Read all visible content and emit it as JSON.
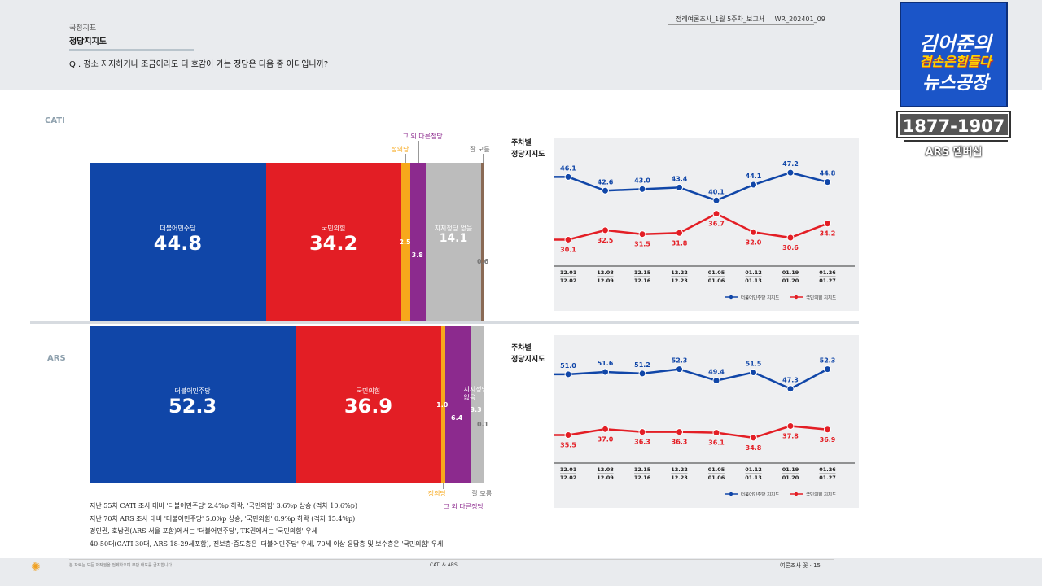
{
  "header": {
    "section": "국정지표",
    "title": "정당지지도",
    "question": "Q . 평소 지지하거나 조금이라도 더 호감이 가는 정당은 다음 중 어디입니까?",
    "doc_id": "정례여론조사_1월 5주차_보고서",
    "doc_code": "WR_202401_09"
  },
  "badge": {
    "line1": "김어준의",
    "line2": "겸손은힘들다",
    "line3": "뉴스공장",
    "number": "1877-1907",
    "sub": "ARS 멤버십"
  },
  "footer": {
    "small": "본 자료는 모든 저작권을 전제하오며 무단 배포를 금지합니다",
    "center": "CATI & ARS",
    "right": "여론조사 꽃 · 15"
  },
  "colors": {
    "democratic": "#1046a8",
    "ppp": "#e31e25",
    "justice": "#f7a81b",
    "other": "#8c2a8e",
    "none": "#bcbcbc",
    "dontknow": "#8a6a55"
  },
  "chart_data": [
    {
      "type": "bar",
      "stacked": "horizontal-100",
      "section": "CATI",
      "segments": [
        {
          "name": "더불어민주당",
          "value": 44.8,
          "color": "#1046a8"
        },
        {
          "name": "국민의힘",
          "value": 34.2,
          "color": "#e31e25"
        },
        {
          "name": "정의당",
          "value": 2.5,
          "color": "#f7a81b"
        },
        {
          "name": "그 외 다른정당",
          "value": 3.8,
          "color": "#8c2a8e"
        },
        {
          "name": "지지정당 없음",
          "value": 14.1,
          "color": "#bcbcbc"
        },
        {
          "name": "잘 모름",
          "value": 0.6,
          "color": "#8a6a55"
        }
      ]
    },
    {
      "type": "bar",
      "stacked": "horizontal-100",
      "section": "ARS",
      "segments": [
        {
          "name": "더불어민주당",
          "value": 52.3,
          "color": "#1046a8"
        },
        {
          "name": "국민의힘",
          "value": 36.9,
          "color": "#e31e25"
        },
        {
          "name": "정의당",
          "value": 1.0,
          "color": "#f7a81b"
        },
        {
          "name": "그 외 다른정당",
          "value": 6.4,
          "color": "#8c2a8e"
        },
        {
          "name": "지지정당 없음",
          "value": 3.3,
          "color": "#bcbcbc"
        },
        {
          "name": "잘 모름",
          "value": 0.1,
          "color": "#8a6a55"
        }
      ]
    },
    {
      "type": "line",
      "title": "주차별\n정당지지도",
      "x": [
        [
          "12.01",
          "12.02"
        ],
        [
          "12.08",
          "12.09"
        ],
        [
          "12.15",
          "12.16"
        ],
        [
          "12.22",
          "12.23"
        ],
        [
          "01.05",
          "01.06"
        ],
        [
          "01.12",
          "01.13"
        ],
        [
          "01.19",
          "01.20"
        ],
        [
          "01.26",
          "01.27"
        ]
      ],
      "ylim": [
        25,
        52
      ],
      "series": [
        {
          "name": "더불어민주당 지지도",
          "color": "#1046a8",
          "values": [
            46.1,
            42.6,
            43.0,
            43.4,
            40.1,
            44.1,
            47.2,
            44.8
          ]
        },
        {
          "name": "국민의힘 지지도",
          "color": "#e31e25",
          "values": [
            30.1,
            32.5,
            31.5,
            31.8,
            36.7,
            32.0,
            30.6,
            34.2
          ]
        }
      ]
    },
    {
      "type": "line",
      "title": "주차별\n정당지지도",
      "x": [
        [
          "12.01",
          "12.02"
        ],
        [
          "12.08",
          "12.09"
        ],
        [
          "12.15",
          "12.16"
        ],
        [
          "12.22",
          "12.23"
        ],
        [
          "01.05",
          "01.06"
        ],
        [
          "01.12",
          "01.13"
        ],
        [
          "01.19",
          "01.20"
        ],
        [
          "01.26",
          "01.27"
        ]
      ],
      "ylim": [
        30,
        57
      ],
      "series": [
        {
          "name": "더불어민주당 지지도",
          "color": "#1046a8",
          "values": [
            51.0,
            51.6,
            51.2,
            52.3,
            49.4,
            51.5,
            47.3,
            52.3
          ]
        },
        {
          "name": "국민의힘 지지도",
          "color": "#e31e25",
          "values": [
            35.5,
            37.0,
            36.3,
            36.3,
            36.1,
            34.8,
            37.8,
            36.9
          ]
        }
      ]
    }
  ],
  "notes": [
    "지난 55차 CATI 조사 대비 '더불어민주당' 2.4%p 하락, '국민의힘' 3.6%p 상승 (격차 10.6%p)",
    "지난 70차 ARS 조사 대비 '더불어민주당' 5.0%p 상승, '국민의힘' 0.9%p 하락 (격차 15.4%p)",
    "경인권, 호남권(ARS 서울 포함)에서는 '더불어민주당', TK권에서는 '국민의힘' 우세",
    "40-50대(CATI 30대, ARS 18-29세포함), 진보층·중도층은 '더불어민주당' 우세, 70세 이상 응답층 및 보수층은 '국민의힘' 우세"
  ]
}
